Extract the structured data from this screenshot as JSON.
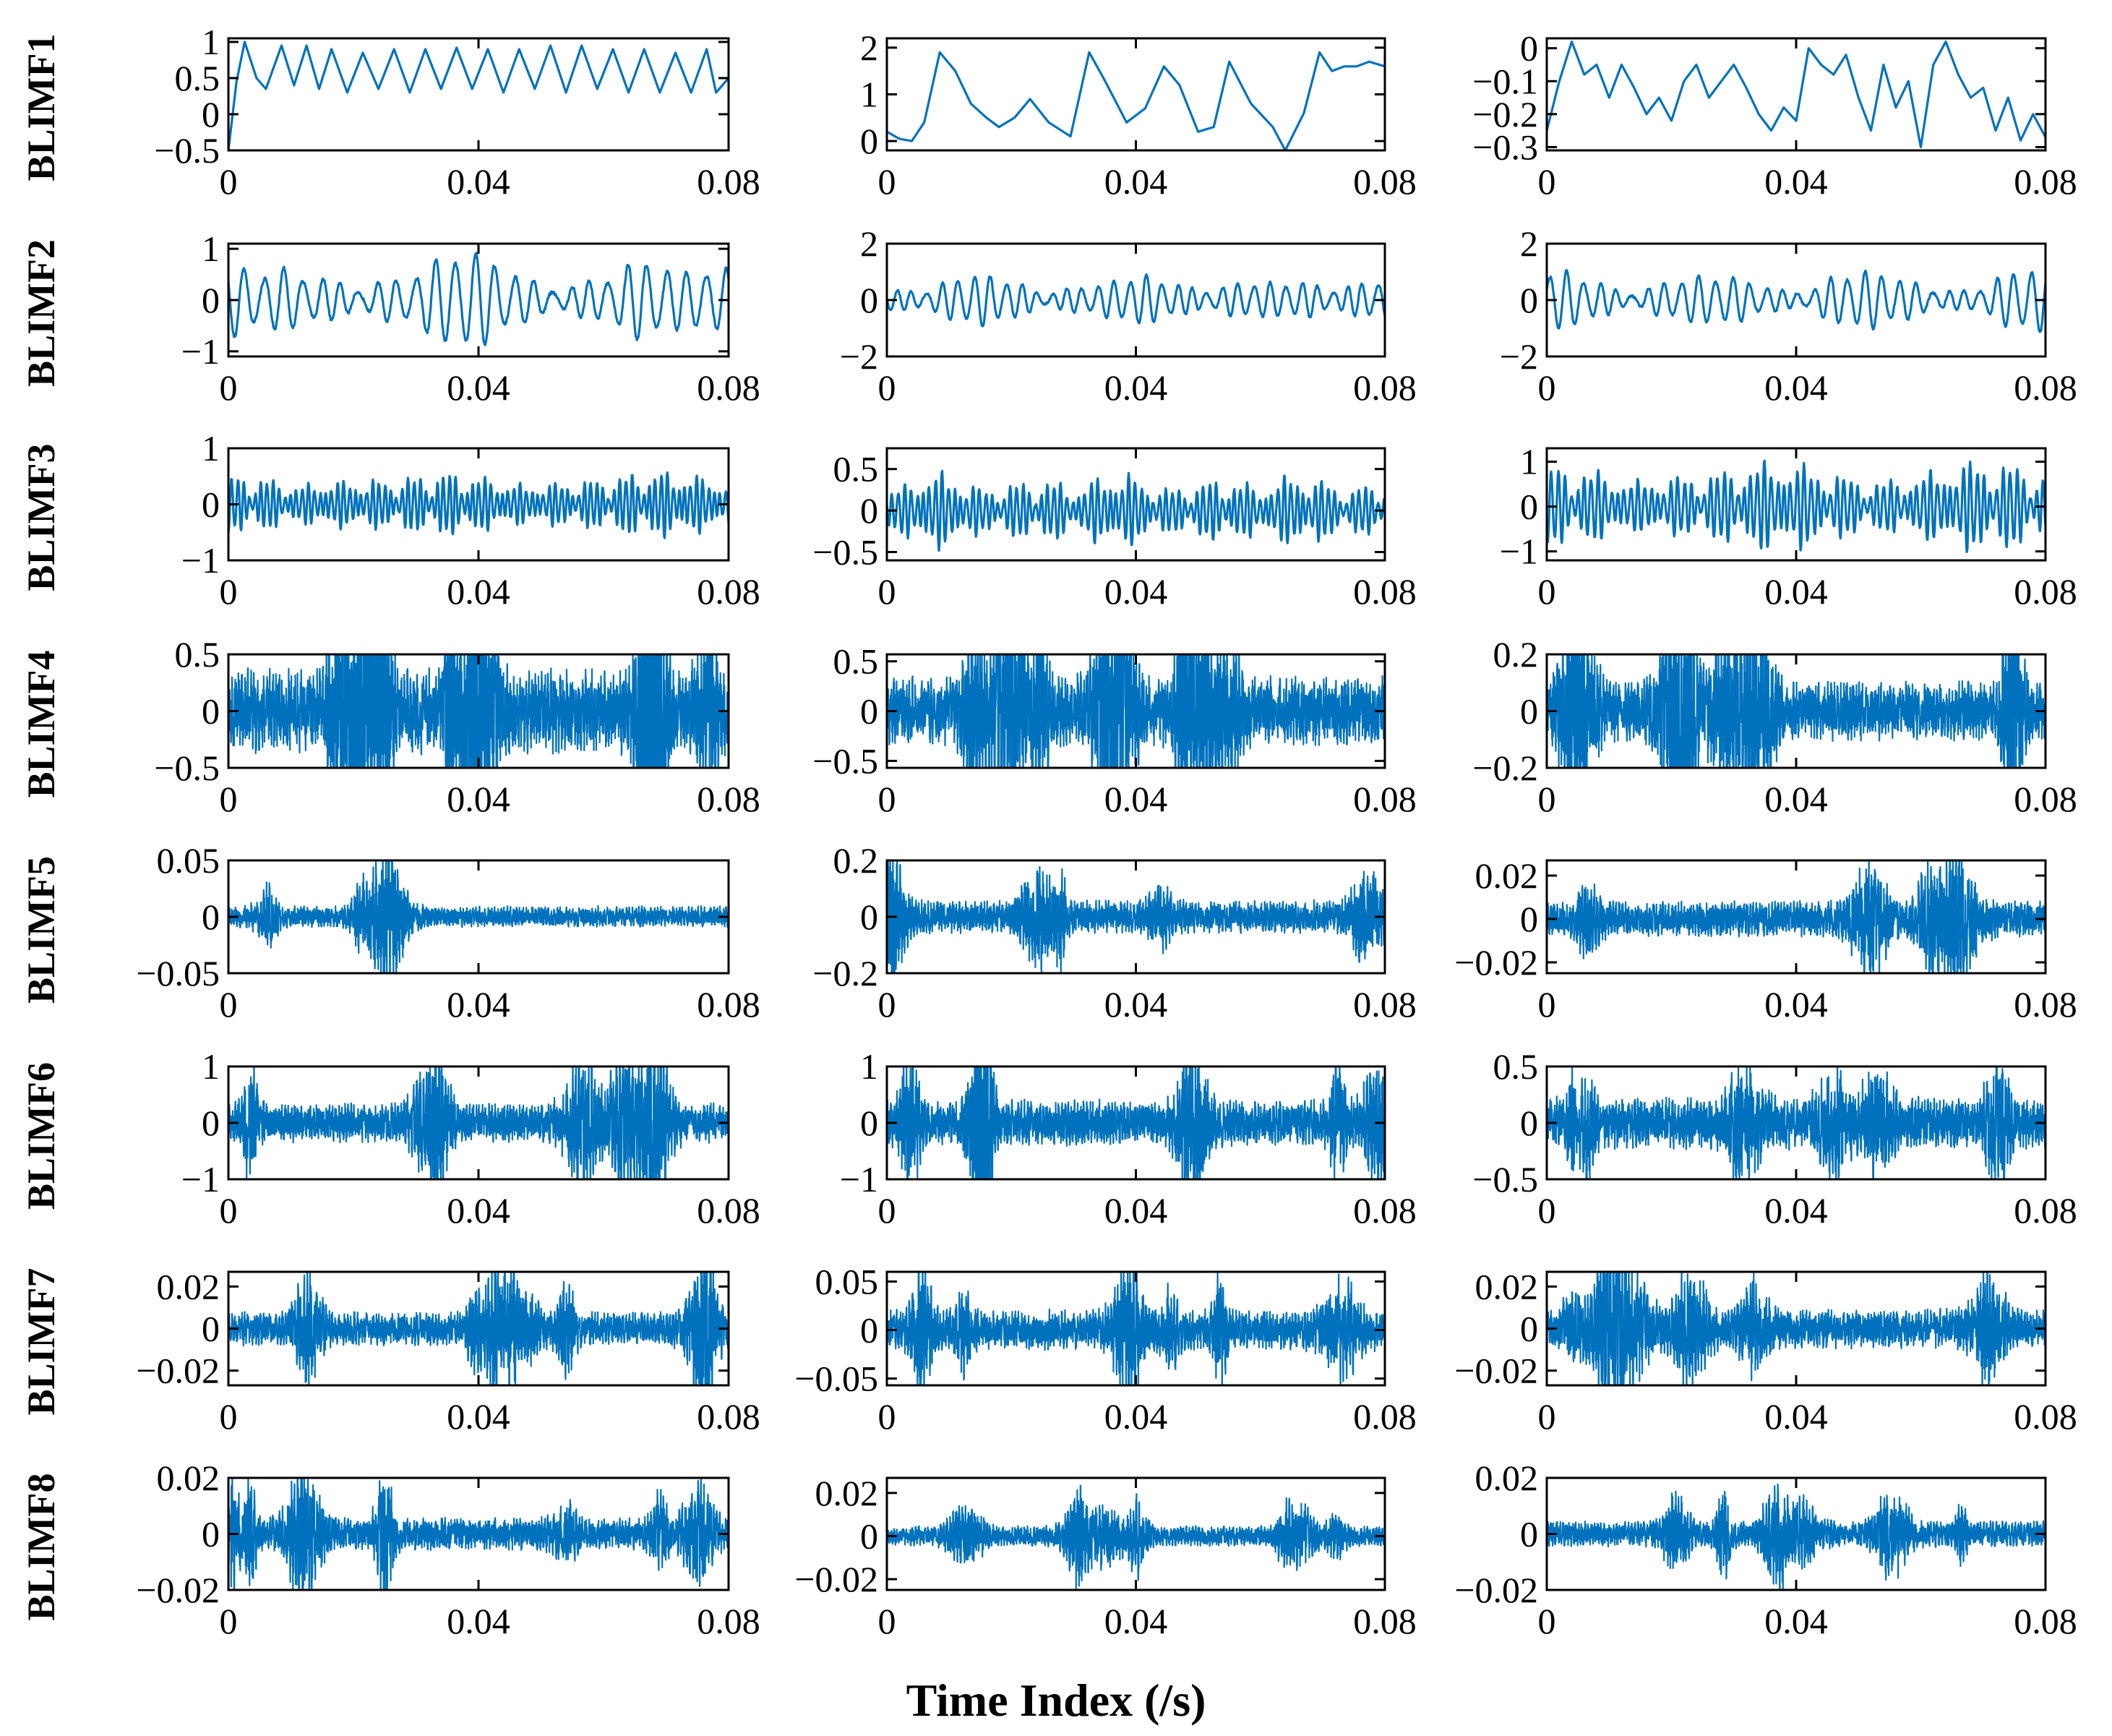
{
  "chart_data": {
    "type": "line",
    "layout": "grid 8 rows x 3 columns of line subplots",
    "xlabel": "Time Index (/s)",
    "xlim": [
      0,
      0.08
    ],
    "xtick_labels": [
      "0",
      "0.04",
      "0.08"
    ],
    "series_color": "#0072BD",
    "rows": [
      {
        "label": "BLIMF1",
        "panels": [
          {
            "ylim": [
              -0.5,
              1.05
            ],
            "yticks": [
              1,
              0.5,
              0,
              -0.5
            ],
            "ytick_labels": [
              "1",
              "0.5",
              "0",
              "−0.5"
            ],
            "signal": {
              "x": [
                0,
                0.0013,
                0.0026,
                0.0045,
                0.006,
                0.0085,
                0.0105,
                0.0125,
                0.0145,
                0.0165,
                0.019,
                0.0215,
                0.024,
                0.0265,
                0.029,
                0.0315,
                0.034,
                0.0365,
                0.039,
                0.0415,
                0.044,
                0.0465,
                0.049,
                0.0515,
                0.054,
                0.0565,
                0.059,
                0.0615,
                0.064,
                0.0665,
                0.069,
                0.0715,
                0.074,
                0.0765,
                0.078,
                0.08
              ],
              "y": [
                -0.5,
                0.45,
                1.0,
                0.5,
                0.35,
                0.95,
                0.4,
                0.95,
                0.35,
                0.9,
                0.3,
                0.85,
                0.35,
                0.9,
                0.3,
                0.9,
                0.35,
                0.92,
                0.35,
                0.9,
                0.3,
                0.9,
                0.35,
                0.95,
                0.3,
                0.95,
                0.35,
                0.9,
                0.3,
                0.9,
                0.3,
                0.85,
                0.3,
                0.9,
                0.3,
                0.5
              ]
            }
          },
          {
            "ylim": [
              -0.2,
              2.2
            ],
            "yticks": [
              2,
              1,
              0
            ],
            "ytick_labels": [
              "2",
              "1",
              "0"
            ],
            "signal": {
              "x": [
                0,
                0.002,
                0.004,
                0.006,
                0.0085,
                0.011,
                0.0135,
                0.016,
                0.018,
                0.0205,
                0.023,
                0.026,
                0.0295,
                0.0325,
                0.035,
                0.0385,
                0.0415,
                0.0445,
                0.047,
                0.05,
                0.0525,
                0.055,
                0.0585,
                0.062,
                0.064,
                0.067,
                0.0695,
                0.0715,
                0.0735,
                0.0755,
                0.0775,
                0.08
              ],
              "y": [
                0.2,
                0.05,
                0.0,
                0.4,
                1.9,
                1.5,
                0.8,
                0.5,
                0.3,
                0.5,
                0.9,
                0.4,
                0.1,
                1.9,
                1.3,
                0.4,
                0.7,
                1.6,
                1.2,
                0.2,
                0.3,
                1.7,
                0.8,
                0.3,
                -0.2,
                0.6,
                1.9,
                1.5,
                1.6,
                1.6,
                1.7,
                1.6
              ]
            }
          },
          {
            "ylim": [
              -0.31,
              0.03
            ],
            "yticks": [
              0,
              -0.1,
              -0.2,
              -0.3
            ],
            "ytick_labels": [
              "0",
              "−0.1",
              "−0.2",
              "−0.3"
            ],
            "signal": {
              "x": [
                0,
                0.002,
                0.004,
                0.006,
                0.008,
                0.01,
                0.012,
                0.014,
                0.016,
                0.018,
                0.02,
                0.022,
                0.024,
                0.026,
                0.028,
                0.03,
                0.032,
                0.034,
                0.036,
                0.038,
                0.04,
                0.042,
                0.044,
                0.046,
                0.048,
                0.05,
                0.052,
                0.054,
                0.056,
                0.058,
                0.06,
                0.062,
                0.064,
                0.066,
                0.068,
                0.07,
                0.072,
                0.074,
                0.076,
                0.078,
                0.08
              ],
              "y": [
                -0.25,
                -0.1,
                0.02,
                -0.08,
                -0.05,
                -0.15,
                -0.05,
                -0.12,
                -0.2,
                -0.15,
                -0.22,
                -0.1,
                -0.05,
                -0.15,
                -0.1,
                -0.05,
                -0.12,
                -0.2,
                -0.25,
                -0.18,
                -0.22,
                0.0,
                -0.05,
                -0.08,
                -0.02,
                -0.15,
                -0.25,
                -0.05,
                -0.18,
                -0.1,
                -0.3,
                -0.05,
                0.02,
                -0.08,
                -0.15,
                -0.12,
                -0.25,
                -0.15,
                -0.28,
                -0.2,
                -0.27
              ]
            }
          }
        ]
      },
      {
        "label": "BLIMF2",
        "panels": [
          {
            "ylim": [
              -1.1,
              1.1
            ],
            "yticks": [
              1,
              0,
              -1
            ],
            "ytick_labels": [
              "1",
              "0",
              "−1"
            ],
            "signal": {
              "kind": "oscillation",
              "amplitude": 0.9,
              "cycles": 26,
              "seed": 21
            }
          },
          {
            "ylim": [
              -2,
              2
            ],
            "yticks": [
              2,
              0,
              -2
            ],
            "ytick_labels": [
              "2",
              "0",
              "−2"
            ],
            "signal": {
              "kind": "oscillation",
              "amplitude": 1.0,
              "cycles": 32,
              "seed": 22
            }
          },
          {
            "ylim": [
              -2,
              2
            ],
            "yticks": [
              2,
              0,
              -2
            ],
            "ytick_labels": [
              "2",
              "0",
              "−2"
            ],
            "signal": {
              "kind": "oscillation",
              "amplitude": 1.1,
              "cycles": 30,
              "seed": 23
            }
          }
        ]
      },
      {
        "label": "BLIMF3",
        "panels": [
          {
            "ylim": [
              -1,
              1
            ],
            "yticks": [
              1,
              0,
              -1
            ],
            "ytick_labels": [
              "1",
              "0",
              "−1"
            ],
            "signal": {
              "kind": "oscillation",
              "amplitude": 0.6,
              "cycles": 85,
              "seed": 31
            }
          },
          {
            "ylim": [
              -0.6,
              0.75
            ],
            "yticks": [
              0.5,
              0,
              -0.5
            ],
            "ytick_labels": [
              "0.5",
              "0",
              "−0.5"
            ],
            "signal": {
              "kind": "oscillation",
              "amplitude": 0.45,
              "cycles": 80,
              "seed": 32
            }
          },
          {
            "ylim": [
              -1.2,
              1.3
            ],
            "yticks": [
              1,
              0,
              -1
            ],
            "ytick_labels": [
              "1",
              "0",
              "−1"
            ],
            "signal": {
              "kind": "oscillation",
              "amplitude": 1.0,
              "cycles": 75,
              "seed": 33
            }
          }
        ]
      },
      {
        "label": "BLIMF4",
        "panels": [
          {
            "ylim": [
              -0.5,
              0.5
            ],
            "yticks": [
              0.5,
              0,
              -0.5
            ],
            "ytick_labels": [
              "0.5",
              "0",
              "−0.5"
            ],
            "signal": {
              "kind": "dense",
              "amplitude": 0.32,
              "seed": 41
            }
          },
          {
            "ylim": [
              -0.57,
              0.57
            ],
            "yticks": [
              0.5,
              0,
              -0.5
            ],
            "ytick_labels": [
              "0.5",
              "0",
              "−0.5"
            ],
            "signal": {
              "kind": "dense",
              "amplitude": 0.3,
              "seed": 42
            }
          },
          {
            "ylim": [
              -0.2,
              0.2
            ],
            "yticks": [
              0.2,
              0,
              -0.2
            ],
            "ytick_labels": [
              "0.2",
              "0",
              "−0.2"
            ],
            "signal": {
              "kind": "dense",
              "amplitude": 0.09,
              "seed": 43
            }
          }
        ]
      },
      {
        "label": "BLIMF5",
        "panels": [
          {
            "ylim": [
              -0.05,
              0.05
            ],
            "yticks": [
              0.05,
              0,
              -0.05
            ],
            "ytick_labels": [
              "0.05",
              "0",
              "−0.05"
            ],
            "signal": {
              "kind": "dense",
              "amplitude": 0.008,
              "seed": 51
            }
          },
          {
            "ylim": [
              -0.2,
              0.2
            ],
            "yticks": [
              0.2,
              0,
              -0.2
            ],
            "ytick_labels": [
              "0.2",
              "0",
              "−0.2"
            ],
            "signal": {
              "kind": "dense",
              "amplitude": 0.05,
              "seed": 52
            }
          },
          {
            "ylim": [
              -0.025,
              0.027
            ],
            "yticks": [
              0.02,
              0,
              -0.02
            ],
            "ytick_labels": [
              "0.02",
              "0",
              "−0.02"
            ],
            "signal": {
              "kind": "dense",
              "amplitude": 0.007,
              "seed": 53
            }
          }
        ]
      },
      {
        "label": "BLIMF6",
        "panels": [
          {
            "ylim": [
              -1,
              1
            ],
            "yticks": [
              1,
              0,
              -1
            ],
            "ytick_labels": [
              "1",
              "0",
              "−1"
            ],
            "signal": {
              "kind": "dense",
              "amplitude": 0.3,
              "seed": 61
            }
          },
          {
            "ylim": [
              -1,
              1
            ],
            "yticks": [
              1,
              0,
              -1
            ],
            "ytick_labels": [
              "1",
              "0",
              "−1"
            ],
            "signal": {
              "kind": "dense",
              "amplitude": 0.35,
              "seed": 62
            }
          },
          {
            "ylim": [
              -0.5,
              0.5
            ],
            "yticks": [
              0.5,
              0,
              -0.5
            ],
            "ytick_labels": [
              "0.5",
              "0",
              "−0.5"
            ],
            "signal": {
              "kind": "dense",
              "amplitude": 0.2,
              "seed": 63
            }
          }
        ]
      },
      {
        "label": "BLIMF7",
        "panels": [
          {
            "ylim": [
              -0.027,
              0.027
            ],
            "yticks": [
              0.02,
              0,
              -0.02
            ],
            "ytick_labels": [
              "0.02",
              "0",
              "−0.02"
            ],
            "signal": {
              "kind": "dense",
              "amplitude": 0.007,
              "seed": 71
            }
          },
          {
            "ylim": [
              -0.057,
              0.06
            ],
            "yticks": [
              0.05,
              0,
              -0.05
            ],
            "ytick_labels": [
              "0.05",
              "0",
              "−0.05"
            ],
            "signal": {
              "kind": "dense",
              "amplitude": 0.018,
              "seed": 72
            }
          },
          {
            "ylim": [
              -0.027,
              0.027
            ],
            "yticks": [
              0.02,
              0,
              -0.02
            ],
            "ytick_labels": [
              "0.02",
              "0",
              "−0.02"
            ],
            "signal": {
              "kind": "dense",
              "amplitude": 0.008,
              "seed": 73
            }
          }
        ]
      },
      {
        "label": "BLIMF8",
        "panels": [
          {
            "ylim": [
              -0.02,
              0.02
            ],
            "yticks": [
              0.02,
              0,
              -0.02
            ],
            "ytick_labels": [
              "0.02",
              "0",
              "−0.02"
            ],
            "signal": {
              "kind": "dense",
              "amplitude": 0.005,
              "seed": 81
            }
          },
          {
            "ylim": [
              -0.025,
              0.027
            ],
            "yticks": [
              0.02,
              0,
              -0.02
            ],
            "ytick_labels": [
              "0.02",
              "0",
              "−0.02"
            ],
            "signal": {
              "kind": "dense",
              "amplitude": 0.004,
              "seed": 82
            }
          },
          {
            "ylim": [
              -0.02,
              0.02
            ],
            "yticks": [
              0.02,
              0,
              -0.02
            ],
            "ytick_labels": [
              "0.02",
              "0",
              "−0.02"
            ],
            "signal": {
              "kind": "dense",
              "amplitude": 0.004,
              "seed": 83
            }
          }
        ]
      }
    ]
  }
}
